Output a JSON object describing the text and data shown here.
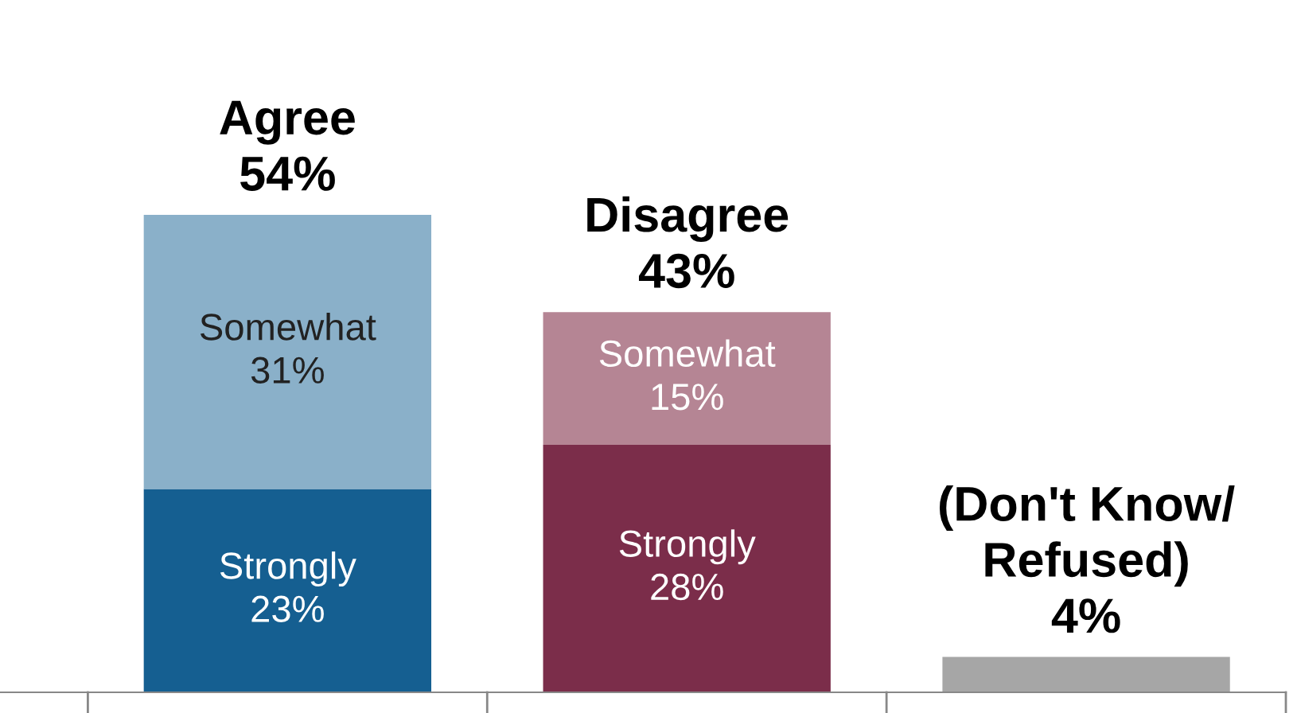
{
  "chart_data": {
    "type": "bar",
    "stacked": true,
    "categories": [
      null,
      null,
      null
    ],
    "series": [
      {
        "colors": [
          "#155f91",
          "#7b2d4a",
          "#a6a6a6"
        ],
        "values": [
          23,
          28,
          4
        ],
        "value_labels": [
          "Strongly\n23%",
          "Strongly\n28%",
          null
        ]
      },
      {
        "colors": [
          "#8ab0c9",
          "#b58594",
          null
        ],
        "values": [
          31,
          15,
          null
        ],
        "value_labels": [
          "Somewhat\n31%",
          "Somewhat\n15%",
          null
        ]
      }
    ],
    "totals": [
      "Agree\n54%",
      "Disagree\n43%",
      "(Don't Know/\nRefused)\n4%"
    ],
    "grid": false,
    "legend": false
  }
}
